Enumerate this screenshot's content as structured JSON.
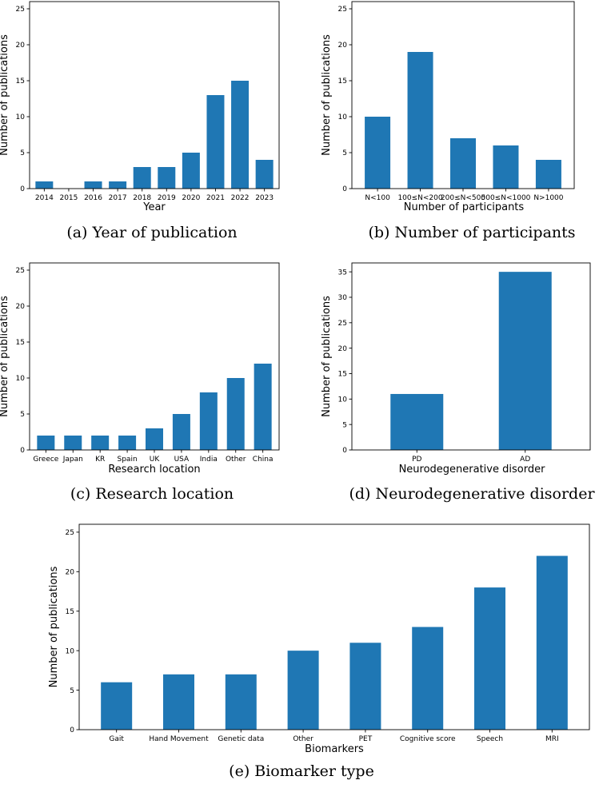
{
  "bar_color": "#1f77b4",
  "chart_data": [
    {
      "id": "a",
      "type": "bar",
      "caption": "(a) Year of publication",
      "xlabel": "Year",
      "ylabel": "Number of publications",
      "categories": [
        "2014",
        "2015",
        "2016",
        "2017",
        "2018",
        "2019",
        "2020",
        "2021",
        "2022",
        "2023"
      ],
      "values": [
        1,
        0,
        1,
        1,
        3,
        3,
        5,
        13,
        15,
        4
      ],
      "ylim": [
        0,
        26
      ],
      "yticks": [
        "0",
        "5",
        "10",
        "15",
        "20",
        "25"
      ]
    },
    {
      "id": "b",
      "type": "bar",
      "caption": "(b) Number of participants",
      "xlabel": "Number of participants",
      "ylabel": "Number of publications",
      "categories": [
        "N<100",
        "100≤N<200",
        "200≤N<500",
        "500≤N<1000",
        "N>1000"
      ],
      "values": [
        10,
        19,
        7,
        6,
        4
      ],
      "ylim": [
        0,
        26
      ],
      "yticks": [
        "0",
        "5",
        "10",
        "15",
        "20",
        "25"
      ]
    },
    {
      "id": "c",
      "type": "bar",
      "caption": "(c) Research location",
      "xlabel": "Research location",
      "ylabel": "Number of publications",
      "categories": [
        "Greece",
        "Japan",
        "KR",
        "Spain",
        "UK",
        "USA",
        "India",
        "Other",
        "China"
      ],
      "values": [
        2,
        2,
        2,
        2,
        3,
        5,
        8,
        10,
        12
      ],
      "ylim": [
        0,
        26
      ],
      "yticks": [
        "0",
        "5",
        "10",
        "15",
        "20",
        "25"
      ]
    },
    {
      "id": "d",
      "type": "bar",
      "caption": "(d) Neurodegenerative disorder",
      "xlabel": "Neurodegenerative disorder",
      "ylabel": "Number of publications",
      "categories": [
        "PD",
        "AD"
      ],
      "values": [
        11,
        35
      ],
      "ylim": [
        0,
        36.75
      ],
      "yticks": [
        "0",
        "5",
        "10",
        "15",
        "20",
        "25",
        "30",
        "35"
      ]
    },
    {
      "id": "e",
      "type": "bar",
      "caption": "(e) Biomarker type",
      "xlabel": "Biomarkers",
      "ylabel": "Number of publications",
      "categories": [
        "Gait",
        "Hand Movement",
        "Genetic data",
        "Other",
        "PET",
        "Cognitive score",
        "Speech",
        "MRI"
      ],
      "values": [
        6,
        7,
        7,
        10,
        11,
        13,
        18,
        22
      ],
      "ylim": [
        0,
        26
      ],
      "yticks": [
        "0",
        "5",
        "10",
        "15",
        "20",
        "25"
      ]
    }
  ]
}
